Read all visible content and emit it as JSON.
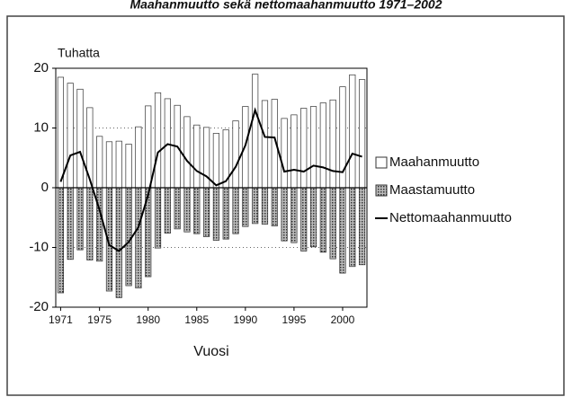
{
  "chart_data": {
    "type": "bar",
    "title": "Maahanmuutto sekä nettomaahanmuutto 1971–2002",
    "y_unit_label": "Tuhatta",
    "x_label": "Vuosi",
    "x": [
      1971,
      1972,
      1973,
      1974,
      1975,
      1976,
      1977,
      1978,
      1979,
      1980,
      1981,
      1982,
      1983,
      1984,
      1985,
      1986,
      1987,
      1988,
      1989,
      1990,
      1991,
      1992,
      1993,
      1994,
      1995,
      1996,
      1997,
      1998,
      1999,
      2000,
      2001,
      2002
    ],
    "xlim": [
      1970.5,
      2002.5
    ],
    "xticks": [
      1971,
      1975,
      1980,
      1985,
      1990,
      1995,
      2000
    ],
    "ylim": [
      -20,
      20
    ],
    "yticks": [
      -20,
      -10,
      0,
      10,
      20
    ],
    "grid": true,
    "series": [
      {
        "name": "Maahanmuutto",
        "kind": "bar",
        "color": "#ffffff",
        "values": [
          18.5,
          17.5,
          16.5,
          13.4,
          8.6,
          7.7,
          7.8,
          7.3,
          10.2,
          13.7,
          15.9,
          14.9,
          13.8,
          11.9,
          10.5,
          10.1,
          9.1,
          9.7,
          11.2,
          13.6,
          19.0,
          14.6,
          14.8,
          11.6,
          12.2,
          13.3,
          13.6,
          14.2,
          14.7,
          16.9,
          18.9,
          18.1
        ]
      },
      {
        "name": "Maastamuutto",
        "kind": "bar",
        "color": "#777777",
        "values": [
          -17.6,
          -12.0,
          -10.4,
          -12.1,
          -12.3,
          -17.3,
          -18.4,
          -16.4,
          -16.8,
          -14.9,
          -10.1,
          -7.6,
          -6.9,
          -7.4,
          -7.7,
          -8.2,
          -8.8,
          -8.6,
          -7.7,
          -6.5,
          -6.0,
          -6.1,
          -6.4,
          -8.9,
          -9.2,
          -10.6,
          -9.9,
          -10.8,
          -11.9,
          -14.3,
          -13.2,
          -12.9
        ]
      },
      {
        "name": "Nettomaahanmuutto",
        "kind": "line",
        "color": "#000000",
        "values": [
          1.0,
          5.4,
          6.0,
          1.4,
          -3.7,
          -9.6,
          -10.6,
          -9.1,
          -6.6,
          -1.2,
          5.9,
          7.3,
          6.9,
          4.5,
          2.8,
          1.9,
          0.4,
          1.1,
          3.5,
          7.1,
          13.0,
          8.5,
          8.4,
          2.7,
          3.0,
          2.7,
          3.7,
          3.4,
          2.8,
          2.6,
          5.7,
          5.2
        ]
      }
    ]
  }
}
